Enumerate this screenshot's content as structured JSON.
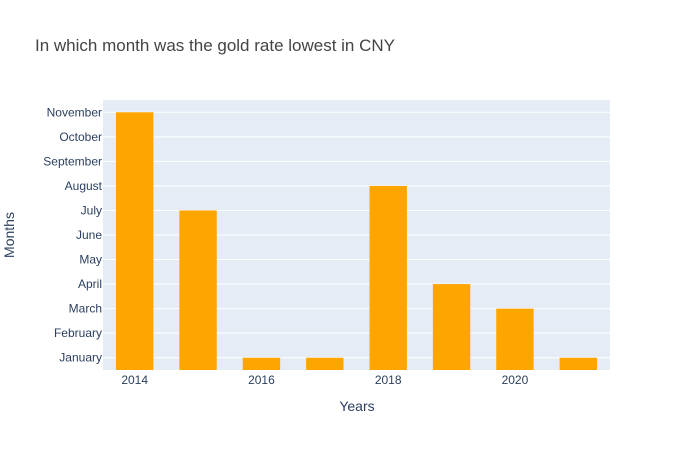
{
  "chart_data": {
    "type": "bar",
    "title": "In which month was the gold rate lowest in CNY",
    "xlabel": "Years",
    "ylabel": "Months",
    "x": [
      2014,
      2015,
      2016,
      2017,
      2018,
      2019,
      2020,
      2021
    ],
    "values": [
      11,
      7,
      1,
      1,
      8,
      4,
      3,
      1
    ],
    "value_labels": [
      "November",
      "July",
      "January",
      "January",
      "August",
      "April",
      "March",
      "January"
    ],
    "x_ticks": [
      2014,
      2016,
      2018,
      2020
    ],
    "y_ticks": [
      "January",
      "February",
      "March",
      "April",
      "May",
      "June",
      "July",
      "August",
      "September",
      "October",
      "November"
    ],
    "xlim": [
      2013.5,
      2021.5
    ],
    "ylim": [
      0.5,
      11.5
    ],
    "grid": true,
    "legend": "none",
    "colors": {
      "bar": "#FFA500",
      "plot_bg": "#E5ECF6",
      "grid": "#FFFFFF",
      "text": "#2A3F5F",
      "title": "#444444"
    }
  }
}
